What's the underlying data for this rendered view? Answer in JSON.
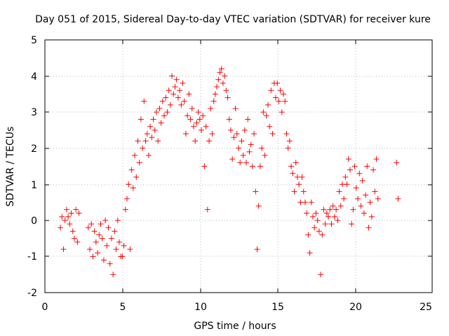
{
  "chart_data": {
    "type": "scatter",
    "title": "Day 051 of 2015, Sidereal Day-to-day VTEC variation (SDTVAR) for receiver kure",
    "xlabel": "GPS time / hours",
    "ylabel": "SDTVAR / TECUs",
    "xlim": [
      0,
      25
    ],
    "ylim": [
      -2,
      5
    ],
    "xticks": [
      "0",
      "5",
      "10",
      "15",
      "20",
      "25"
    ],
    "yticks": [
      "-2",
      "-1",
      "0",
      "1",
      "2",
      "3",
      "4",
      "5"
    ],
    "grid": true,
    "marker": "plus",
    "color": "#ff0000",
    "series": [
      {
        "name": "SDTVAR",
        "x": [
          1.0,
          1.1,
          1.2,
          1.3,
          1.4,
          1.5,
          1.6,
          1.7,
          1.8,
          1.9,
          2.0,
          2.1,
          2.2,
          2.8,
          2.9,
          3.0,
          3.1,
          3.2,
          3.3,
          3.4,
          3.5,
          3.6,
          3.7,
          3.8,
          3.9,
          4.0,
          4.1,
          4.2,
          4.3,
          4.4,
          4.5,
          4.6,
          4.7,
          4.8,
          4.9,
          5.0,
          5.1,
          5.2,
          5.3,
          5.4,
          5.5,
          5.6,
          5.7,
          5.8,
          5.9,
          6.0,
          6.1,
          6.2,
          6.3,
          6.4,
          6.5,
          6.6,
          6.7,
          6.8,
          6.9,
          7.0,
          7.1,
          7.2,
          7.3,
          7.4,
          7.5,
          7.6,
          7.7,
          7.8,
          7.9,
          8.0,
          8.1,
          8.2,
          8.3,
          8.4,
          8.5,
          8.6,
          8.7,
          8.8,
          8.9,
          9.0,
          9.1,
          9.2,
          9.3,
          9.4,
          9.5,
          9.6,
          9.7,
          9.8,
          9.9,
          10.0,
          10.1,
          10.2,
          10.3,
          10.4,
          10.5,
          10.6,
          10.7,
          10.8,
          10.9,
          11.0,
          11.1,
          11.2,
          11.3,
          11.4,
          11.5,
          11.6,
          11.7,
          11.8,
          11.9,
          12.0,
          12.1,
          12.2,
          12.3,
          12.4,
          12.5,
          12.6,
          12.7,
          12.8,
          12.9,
          13.0,
          13.1,
          13.2,
          13.3,
          13.4,
          13.5,
          13.6,
          13.7,
          13.8,
          13.9,
          14.0,
          14.1,
          14.2,
          14.3,
          14.4,
          14.5,
          14.6,
          14.7,
          14.8,
          14.9,
          15.0,
          15.1,
          15.2,
          15.3,
          15.4,
          15.5,
          15.6,
          15.7,
          15.8,
          15.9,
          16.0,
          16.1,
          16.2,
          16.3,
          16.4,
          16.5,
          16.6,
          16.7,
          16.8,
          16.9,
          17.0,
          17.1,
          17.2,
          17.3,
          17.4,
          17.5,
          17.6,
          17.7,
          17.8,
          17.9,
          18.0,
          18.1,
          18.2,
          18.3,
          18.4,
          18.5,
          18.6,
          18.7,
          18.8,
          18.9,
          19.0,
          19.1,
          19.2,
          19.3,
          19.4,
          19.5,
          19.6,
          19.7,
          19.8,
          19.9,
          20.0,
          20.1,
          20.2,
          20.3,
          20.4,
          20.5,
          20.6,
          20.7,
          20.8,
          20.9,
          21.0,
          21.1,
          21.2,
          21.3,
          21.4,
          21.5,
          22.7,
          22.8
        ],
        "y": [
          -0.2,
          0.1,
          -0.8,
          0.0,
          0.3,
          0.1,
          -0.1,
          0.2,
          -0.3,
          -0.5,
          0.3,
          -0.6,
          0.2,
          -0.2,
          -0.8,
          -0.1,
          -1.0,
          -0.3,
          -0.6,
          -0.9,
          -0.4,
          -0.1,
          -0.5,
          -1.1,
          0.0,
          -0.7,
          -0.2,
          -1.2,
          -0.5,
          -1.5,
          -0.3,
          -0.8,
          0.0,
          -0.6,
          -1.0,
          -1.0,
          -0.7,
          0.3,
          0.6,
          1.0,
          -0.8,
          1.4,
          0.9,
          1.8,
          1.2,
          2.2,
          1.6,
          2.8,
          2.0,
          3.3,
          2.2,
          2.4,
          1.8,
          2.6,
          2.3,
          2.8,
          2.5,
          3.0,
          2.2,
          3.1,
          2.7,
          3.3,
          2.9,
          3.4,
          3.0,
          3.6,
          3.2,
          4.0,
          3.5,
          3.7,
          3.9,
          3.4,
          3.6,
          3.2,
          3.8,
          3.3,
          2.4,
          2.9,
          3.5,
          2.8,
          3.1,
          2.6,
          2.2,
          2.7,
          3.0,
          2.8,
          2.5,
          2.9,
          1.5,
          2.6,
          0.3,
          2.2,
          3.1,
          2.4,
          3.3,
          3.5,
          3.7,
          3.9,
          4.1,
          4.2,
          3.8,
          4.0,
          3.6,
          3.4,
          2.8,
          2.5,
          1.7,
          2.3,
          3.1,
          2.4,
          2.0,
          1.6,
          2.2,
          1.8,
          2.5,
          1.6,
          2.8,
          1.9,
          2.1,
          1.5,
          2.4,
          0.8,
          -0.8,
          0.4,
          1.5,
          2.0,
          3.0,
          1.8,
          2.9,
          3.2,
          2.6,
          3.6,
          2.4,
          3.8,
          3.4,
          3.8,
          3.3,
          3.6,
          3.0,
          3.5,
          3.3,
          2.4,
          2.0,
          2.2,
          1.5,
          1.3,
          0.8,
          1.6,
          1.2,
          1.0,
          0.5,
          1.2,
          0.8,
          0.5,
          0.2,
          -0.4,
          -0.9,
          0.5,
          0.1,
          -0.2,
          0.2,
          0.0,
          -0.3,
          -1.5,
          -0.4,
          0.3,
          -0.1,
          0.2,
          0.1,
          0.3,
          -0.1,
          0.4,
          0.1,
          0.3,
          0.0,
          0.8,
          0.4,
          1.0,
          0.6,
          1.2,
          1.0,
          1.7,
          1.4,
          -0.1,
          0.3,
          1.5,
          0.9,
          0.6,
          1.3,
          0.4,
          1.1,
          0.2,
          0.7,
          1.5,
          -0.2,
          0.5,
          0.1,
          1.4,
          0.8,
          1.7,
          0.6,
          1.6,
          0.6
        ]
      }
    ]
  }
}
